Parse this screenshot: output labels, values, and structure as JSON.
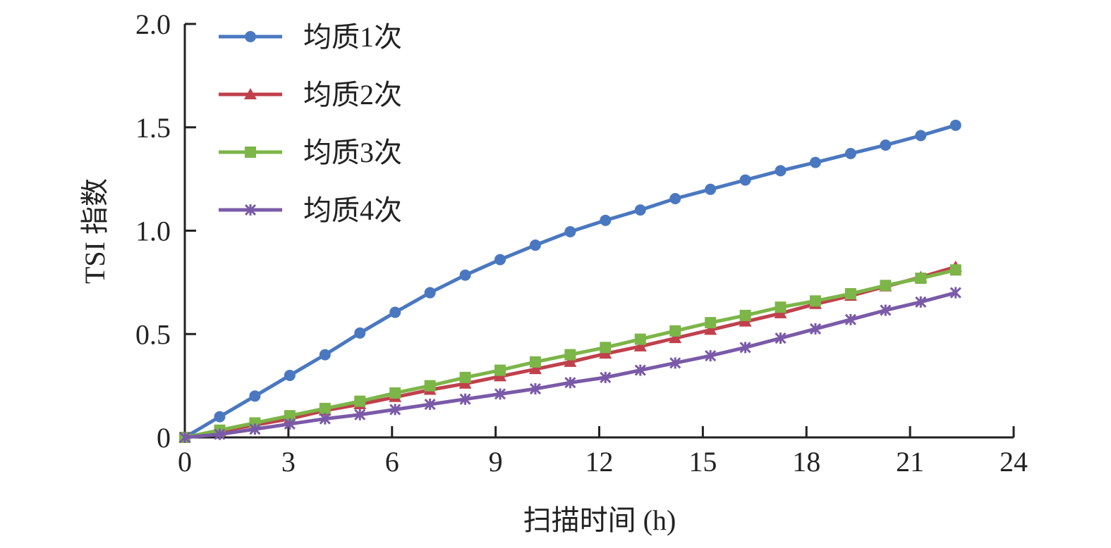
{
  "chart_data": {
    "type": "line",
    "title": "",
    "xlabel": "扫描时间 (h)",
    "ylabel": "TSI 指数",
    "xlim": [
      0,
      24
    ],
    "ylim": [
      0,
      2.0
    ],
    "xticks": [
      0,
      3,
      6,
      9,
      12,
      15,
      18,
      21,
      24
    ],
    "xtick_labels": [
      "0",
      "3",
      "6",
      "9",
      "12",
      "15",
      "18",
      "21",
      "24"
    ],
    "yticks": [
      0,
      0.5,
      1.0,
      1.5,
      2.0
    ],
    "ytick_labels": [
      "0",
      "0.5",
      "1.0",
      "1.5",
      "2.0"
    ],
    "grid": false,
    "legend_position": "top-left",
    "x": [
      0,
      1.01,
      2.03,
      3.04,
      4.06,
      5.07,
      6.09,
      7.1,
      8.12,
      9.13,
      10.15,
      11.16,
      12.18,
      13.19,
      14.2,
      15.22,
      16.23,
      17.25,
      18.26,
      19.28,
      20.29,
      21.31,
      22.32
    ],
    "series": [
      {
        "name": "均质1次",
        "color": "#4a78c0",
        "marker": "circle",
        "values": [
          0,
          0.1,
          0.2,
          0.3,
          0.4,
          0.505,
          0.605,
          0.7,
          0.785,
          0.86,
          0.93,
          0.995,
          1.05,
          1.1,
          1.155,
          1.2,
          1.245,
          1.29,
          1.33,
          1.373,
          1.414,
          1.46,
          1.51
        ]
      },
      {
        "name": "均质2次",
        "color": "#c0404c",
        "marker": "triangle",
        "values": [
          0,
          0.03,
          0.06,
          0.09,
          0.13,
          0.16,
          0.195,
          0.23,
          0.26,
          0.295,
          0.33,
          0.365,
          0.405,
          0.44,
          0.48,
          0.52,
          0.56,
          0.6,
          0.645,
          0.685,
          0.73,
          0.775,
          0.825
        ]
      },
      {
        "name": "均质3次",
        "color": "#7cb548",
        "marker": "square",
        "values": [
          0,
          0.035,
          0.07,
          0.105,
          0.14,
          0.175,
          0.215,
          0.25,
          0.29,
          0.325,
          0.365,
          0.4,
          0.435,
          0.475,
          0.515,
          0.555,
          0.59,
          0.63,
          0.66,
          0.695,
          0.735,
          0.77,
          0.81
        ]
      },
      {
        "name": "均质4次",
        "color": "#7a5aa8",
        "marker": "asterisk",
        "values": [
          0,
          0.015,
          0.04,
          0.065,
          0.09,
          0.11,
          0.135,
          0.16,
          0.185,
          0.21,
          0.235,
          0.265,
          0.29,
          0.325,
          0.36,
          0.395,
          0.435,
          0.48,
          0.525,
          0.57,
          0.615,
          0.655,
          0.7
        ]
      }
    ]
  }
}
